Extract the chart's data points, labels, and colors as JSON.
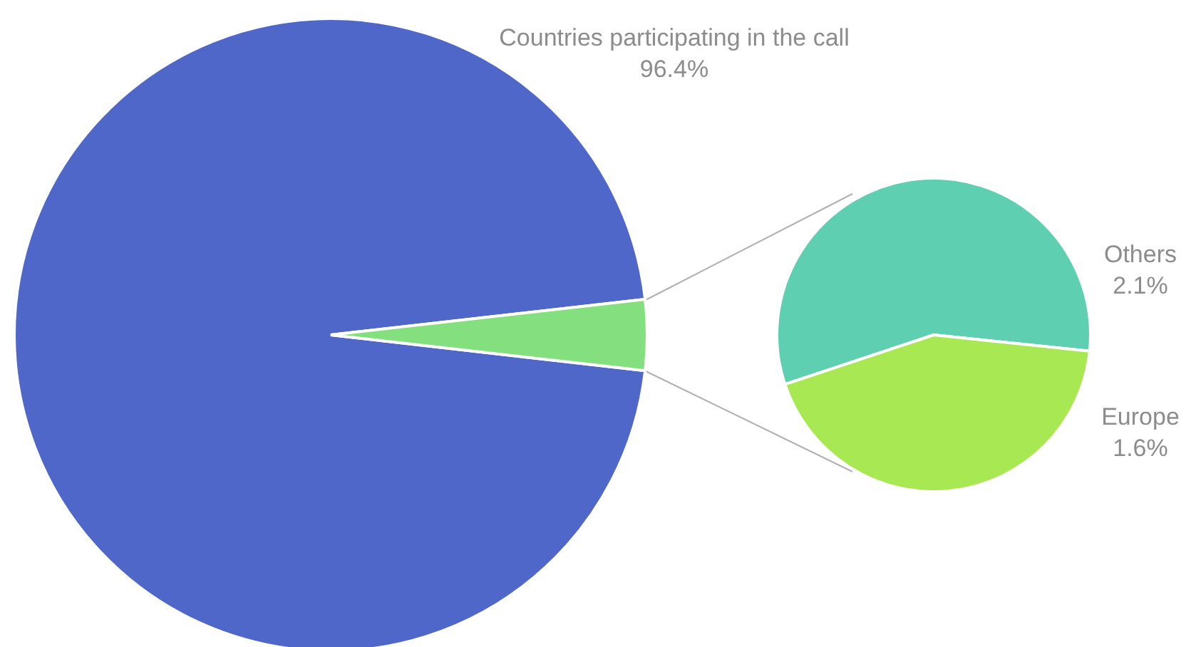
{
  "chart_data": [
    {
      "type": "pie",
      "categories": [
        "Countries participating in the call",
        null
      ],
      "values": [
        96.4,
        3.6
      ],
      "colors": [
        "#4f67c9",
        "#84e07f"
      ],
      "value_labels": [
        "96.4%",
        null
      ],
      "legend": false
    },
    {
      "type": "pie",
      "categories": [
        "Others",
        "Europe"
      ],
      "values": [
        2.1,
        1.6
      ],
      "colors": [
        "#5ecfb1",
        "#a8e852"
      ],
      "value_labels": [
        "2.1%",
        "1.6%"
      ],
      "legend": false
    }
  ]
}
